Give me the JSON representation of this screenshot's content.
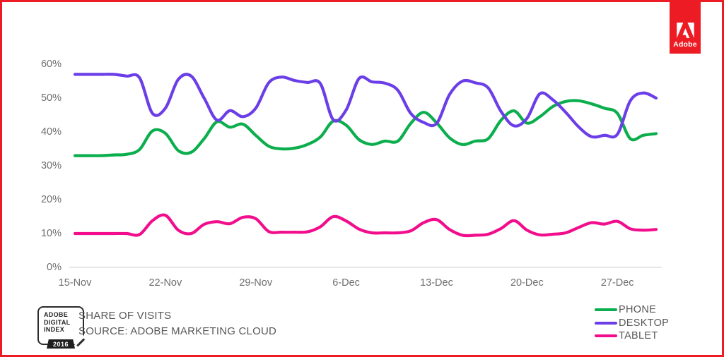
{
  "page": {
    "background": "#FFFFFF",
    "border_color": "#ED1C24"
  },
  "logo": {
    "label": "Adobe",
    "color": "#ED1C24"
  },
  "footer": {
    "badge": {
      "line1": "ADOBE",
      "line2": "DIGITAL",
      "line3": "INDEX",
      "year": "2016"
    },
    "title": "SHARE OF VISITS",
    "source": "SOURCE: ADOBE MARKETING CLOUD"
  },
  "legend": [
    {
      "label": "PHONE",
      "color": "#0BAE4D"
    },
    {
      "label": "DESKTOP",
      "color": "#6B3EE8"
    },
    {
      "label": "TABLET",
      "color": "#F10D8C"
    }
  ],
  "chart_data": {
    "type": "line",
    "title": "SHARE OF VISITS",
    "source": "SOURCE: ADOBE MARKETING CLOUD",
    "ylabel": "",
    "xlabel": "",
    "ylim": [
      0,
      60
    ],
    "y_tick_labels": [
      "0%",
      "10%",
      "20%",
      "30%",
      "40%",
      "50%",
      "60%"
    ],
    "y_tick_values": [
      0,
      10,
      20,
      30,
      40,
      50,
      60
    ],
    "x_tick_labels": [
      "15-Nov",
      "22-Nov",
      "29-Nov",
      "6-Dec",
      "13-Dec",
      "20-Dec",
      "27-Dec"
    ],
    "x_tick_day_index": [
      0,
      7,
      14,
      21,
      28,
      35,
      42
    ],
    "grid": "x-axis-only",
    "legend_position": "bottom-right",
    "dates": [
      "15-Nov",
      "16-Nov",
      "17-Nov",
      "18-Nov",
      "19-Nov",
      "20-Nov",
      "21-Nov",
      "22-Nov",
      "23-Nov",
      "24-Nov",
      "25-Nov",
      "26-Nov",
      "27-Nov",
      "28-Nov",
      "29-Nov",
      "30-Nov",
      "1-Dec",
      "2-Dec",
      "3-Dec",
      "4-Dec",
      "5-Dec",
      "6-Dec",
      "7-Dec",
      "8-Dec",
      "9-Dec",
      "10-Dec",
      "11-Dec",
      "12-Dec",
      "13-Dec",
      "14-Dec",
      "15-Dec",
      "16-Dec",
      "17-Dec",
      "18-Dec",
      "19-Dec",
      "20-Dec",
      "21-Dec",
      "22-Dec",
      "23-Dec",
      "24-Dec",
      "25-Dec",
      "26-Dec",
      "27-Dec",
      "28-Dec",
      "29-Dec",
      "30-Dec"
    ],
    "series": [
      {
        "name": "PHONE",
        "color": "#0BAE4D",
        "values": [
          33,
          33,
          33,
          33.2,
          33.4,
          34.8,
          40.3,
          39.6,
          34.5,
          34,
          38,
          43,
          41.4,
          42.3,
          39,
          35.8,
          35,
          35.2,
          36.3,
          38.5,
          43.2,
          42,
          37.7,
          36.3,
          37.3,
          37.3,
          42.5,
          45.8,
          42.7,
          38.3,
          36.3,
          37.3,
          38,
          43.5,
          46.2,
          42.6,
          44.5,
          47.5,
          49,
          49.2,
          48.3,
          47,
          45.5,
          38,
          39,
          39.5
        ]
      },
      {
        "name": "DESKTOP",
        "color": "#6B3EE8",
        "values": [
          57,
          57,
          57,
          57,
          56.5,
          56,
          45.5,
          47,
          55.5,
          56.5,
          50,
          43.5,
          46.3,
          44.5,
          47,
          54.5,
          56.2,
          55.2,
          54.6,
          54.3,
          43.6,
          46.5,
          55.8,
          54.8,
          54.4,
          52.3,
          45.5,
          42.8,
          42.5,
          51,
          55,
          54.5,
          53,
          46,
          41.8,
          44,
          51.3,
          49.5,
          45.8,
          41.5,
          38.6,
          39,
          39.3,
          49.2,
          51.5,
          50
        ]
      },
      {
        "name": "TABLET",
        "color": "#F10D8C",
        "values": [
          10,
          10,
          10,
          10,
          10,
          9.7,
          13.8,
          15.4,
          11,
          10,
          12.7,
          13.5,
          12.9,
          14.8,
          14.4,
          10.6,
          10.4,
          10.4,
          10.5,
          12,
          15,
          13.7,
          11.3,
          10.2,
          10.2,
          10.2,
          10.8,
          13.2,
          14.1,
          11.2,
          9.5,
          9.5,
          9.8,
          11.5,
          13.8,
          11,
          9.6,
          9.8,
          10.2,
          11.8,
          13.2,
          12.8,
          13.6,
          11.4,
          11,
          11.2
        ]
      }
    ]
  }
}
